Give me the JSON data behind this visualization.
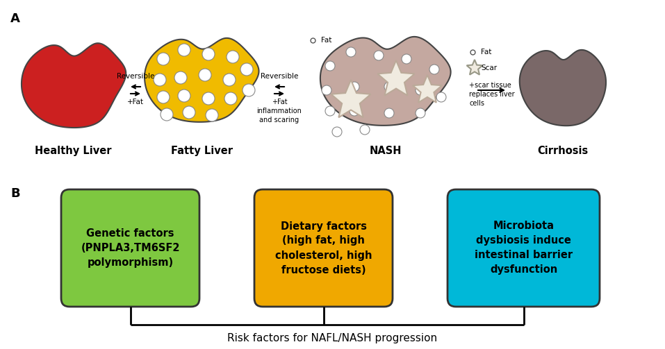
{
  "title_A": "A",
  "title_B": "B",
  "labels": [
    "Healthy Liver",
    "Fatty Liver",
    "NASH",
    "Cirrhosis"
  ],
  "liver_colors": [
    "#cc2020",
    "#f0bb00",
    "#c4a8a0",
    "#7a6868"
  ],
  "box1_text": "Genetic factors\n(PNPLA3,TM6SF2\npolymorphism)",
  "box2_text": "Dietary factors\n(high fat, high\ncholesterol, high\nfructose diets)",
  "box3_text": "Microbiota\ndysbiosis induce\nintestinal barrier\ndysfunction",
  "box1_color": "#7ec840",
  "box2_color": "#f0a800",
  "box3_color": "#00b8d8",
  "bottom_label": "Risk factors for NAFL/NASH progression",
  "background": "#ffffff"
}
